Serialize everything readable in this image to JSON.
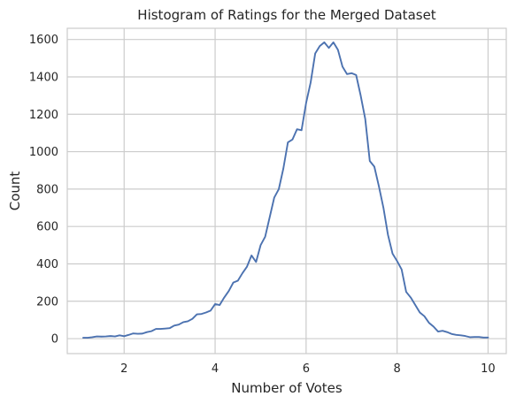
{
  "chart_data": {
    "type": "line",
    "title": "Histogram of Ratings for the Merged Dataset",
    "xlabel": "Number of Votes",
    "ylabel": "Count",
    "xlim": [
      0.75,
      10.4
    ],
    "ylim": [
      -80,
      1660
    ],
    "xticks": [
      2,
      4,
      6,
      8,
      10
    ],
    "yticks": [
      0,
      200,
      400,
      600,
      800,
      1000,
      1200,
      1400,
      1600
    ],
    "grid": true,
    "legend": "none",
    "colors": {
      "line": "#4c72b0",
      "grid": "#cccccc",
      "frame": "#cccccc",
      "background": "#ffffff"
    },
    "series": [
      {
        "values": [
          [
            1.1,
            5
          ],
          [
            1.2,
            5
          ],
          [
            1.3,
            8
          ],
          [
            1.4,
            12
          ],
          [
            1.5,
            11
          ],
          [
            1.6,
            12
          ],
          [
            1.7,
            14
          ],
          [
            1.8,
            12
          ],
          [
            1.9,
            18
          ],
          [
            2.0,
            13
          ],
          [
            2.1,
            20
          ],
          [
            2.2,
            28
          ],
          [
            2.3,
            26
          ],
          [
            2.4,
            27
          ],
          [
            2.5,
            35
          ],
          [
            2.6,
            40
          ],
          [
            2.7,
            52
          ],
          [
            2.8,
            52
          ],
          [
            2.9,
            54
          ],
          [
            3.0,
            56
          ],
          [
            3.1,
            70
          ],
          [
            3.2,
            75
          ],
          [
            3.3,
            88
          ],
          [
            3.4,
            93
          ],
          [
            3.5,
            106
          ],
          [
            3.6,
            130
          ],
          [
            3.7,
            132
          ],
          [
            3.8,
            140
          ],
          [
            3.9,
            150
          ],
          [
            4.0,
            185
          ],
          [
            4.1,
            180
          ],
          [
            4.2,
            220
          ],
          [
            4.3,
            255
          ],
          [
            4.4,
            300
          ],
          [
            4.5,
            310
          ],
          [
            4.6,
            350
          ],
          [
            4.7,
            385
          ],
          [
            4.8,
            445
          ],
          [
            4.9,
            410
          ],
          [
            5.0,
            500
          ],
          [
            5.1,
            545
          ],
          [
            5.2,
            650
          ],
          [
            5.3,
            755
          ],
          [
            5.4,
            800
          ],
          [
            5.5,
            910
          ],
          [
            5.6,
            1050
          ],
          [
            5.7,
            1065
          ],
          [
            5.8,
            1120
          ],
          [
            5.9,
            1115
          ],
          [
            6.0,
            1260
          ],
          [
            6.1,
            1370
          ],
          [
            6.2,
            1525
          ],
          [
            6.3,
            1565
          ],
          [
            6.4,
            1585
          ],
          [
            6.5,
            1555
          ],
          [
            6.6,
            1585
          ],
          [
            6.7,
            1545
          ],
          [
            6.8,
            1455
          ],
          [
            6.9,
            1415
          ],
          [
            7.0,
            1420
          ],
          [
            7.1,
            1410
          ],
          [
            7.2,
            1300
          ],
          [
            7.3,
            1175
          ],
          [
            7.4,
            950
          ],
          [
            7.5,
            920
          ],
          [
            7.6,
            815
          ],
          [
            7.7,
            700
          ],
          [
            7.8,
            555
          ],
          [
            7.9,
            455
          ],
          [
            8.0,
            415
          ],
          [
            8.1,
            370
          ],
          [
            8.2,
            250
          ],
          [
            8.3,
            220
          ],
          [
            8.4,
            180
          ],
          [
            8.5,
            140
          ],
          [
            8.6,
            120
          ],
          [
            8.7,
            85
          ],
          [
            8.8,
            65
          ],
          [
            8.9,
            38
          ],
          [
            9.0,
            42
          ],
          [
            9.1,
            35
          ],
          [
            9.2,
            25
          ],
          [
            9.3,
            20
          ],
          [
            9.4,
            18
          ],
          [
            9.5,
            14
          ],
          [
            9.6,
            8
          ],
          [
            9.7,
            9
          ],
          [
            9.8,
            9
          ],
          [
            9.9,
            6
          ],
          [
            10.0,
            6
          ]
        ]
      }
    ]
  }
}
